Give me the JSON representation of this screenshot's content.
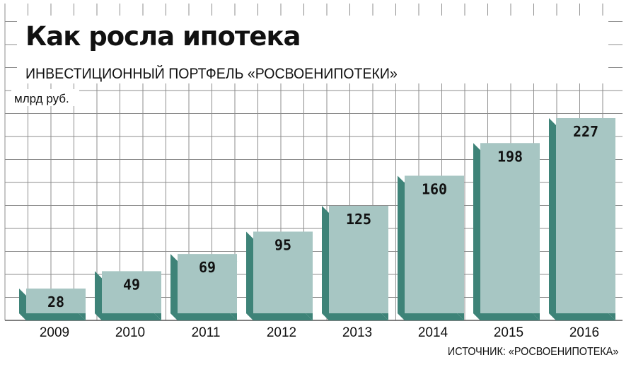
{
  "chart_data": {
    "type": "bar",
    "title": "Как росла ипотека",
    "subtitle": "ИНВЕСТИЦИОННЫЙ ПОРТФЕЛЬ «РОСВОЕНИПОТЕКИ»",
    "unit_label": "млрд руб.",
    "categories": [
      "2009",
      "2010",
      "2011",
      "2012",
      "2013",
      "2014",
      "2015",
      "2016"
    ],
    "values": [
      28,
      49,
      69,
      95,
      125,
      160,
      198,
      227
    ],
    "ylim": [
      0,
      227
    ],
    "grid": true,
    "source": "ИСТОЧНИК: «РОСВОЕНИПОТЕКА»"
  },
  "colors": {
    "bar_face": "#a7c6c3",
    "bar_side": "#3e8378",
    "grid": "#8c8c8c",
    "text": "#111111"
  }
}
